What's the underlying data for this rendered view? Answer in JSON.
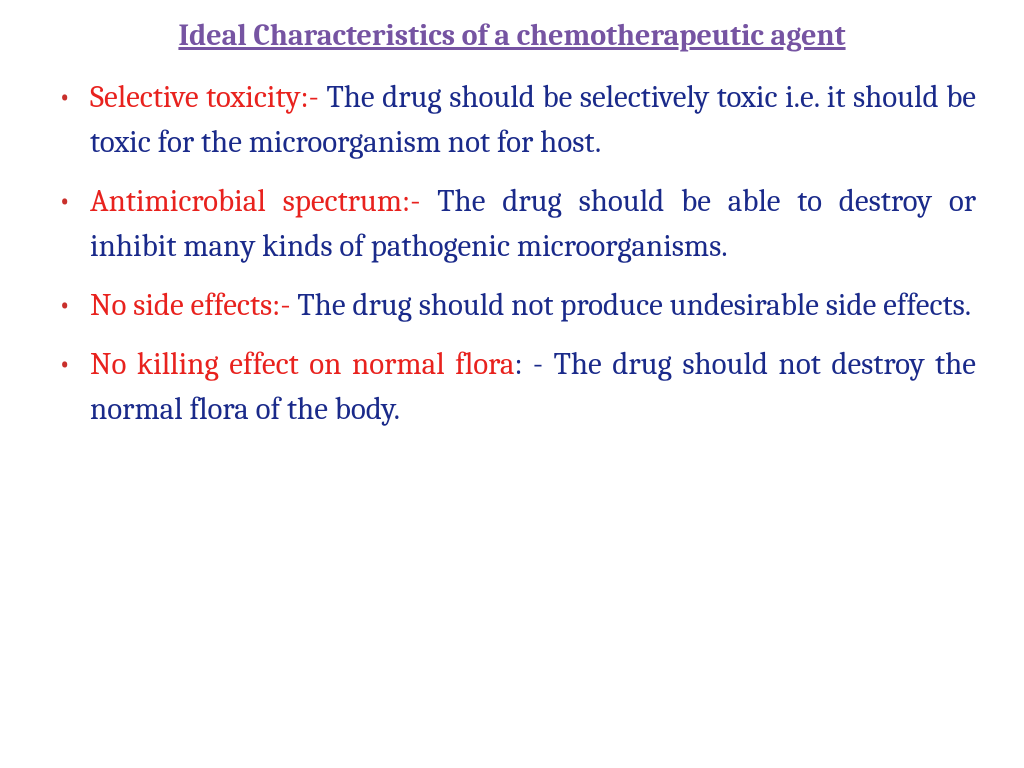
{
  "colors": {
    "title": "#7654a2",
    "bullet": "#c9302c",
    "term": "#e8221e",
    "desc": "#1a2a8a",
    "background": "#ffffff"
  },
  "typography": {
    "title_fontsize": 30,
    "body_fontsize": 31,
    "title_weight": "700",
    "line_height": 1.45
  },
  "title": "Ideal Characteristics of a chemotherapeutic agent",
  "items": [
    {
      "term": "Selective toxicity:- ",
      "desc": "The drug should be selectively toxic i.e. it should be toxic for the microorganism not for host."
    },
    {
      "term": "Antimicrobial spectrum:- ",
      "desc": "The drug should be able to destroy or inhibit many kinds of pathogenic microorganisms."
    },
    {
      "term": "No side effects:- ",
      "desc": "The drug should not produce undesirable side effects."
    },
    {
      "term": "No killing effect on normal flora",
      "desc": ": - The drug should not destroy the normal flora of the body."
    }
  ]
}
